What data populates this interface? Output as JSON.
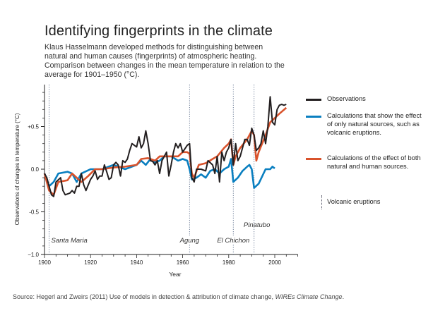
{
  "title": "Identifying fingerprints in the climate",
  "subtitle": "Klaus Hasselmann developed methods for distinguishing between natural and human causes (fingerprints) of atmospheric heating. Comparison between changes in the mean temperature in relation to the average for 1901–1950 (°C).",
  "source": {
    "text": "Source: Hegerl and Zweirs (2011) Use of models in detection & attribution of climate change, ",
    "journal": "WIREs Climate Change",
    "end": "."
  },
  "chart_data": {
    "type": "line",
    "xlabel": "Year",
    "ylabel": "Observations of changes in temperature (°C)",
    "xlim": [
      1900,
      2010
    ],
    "ylim": [
      -1.0,
      1.0
    ],
    "xticks": [
      1900,
      1920,
      1940,
      1960,
      1980,
      2000
    ],
    "xtick_labels": [
      "1900",
      "1920",
      "1940",
      "1960",
      "1980",
      "2000"
    ],
    "yticks": [
      -1.0,
      -0.5,
      0.0,
      0.5
    ],
    "ytick_labels": [
      "−1.0",
      "-0.5",
      "0.0",
      "+0.5"
    ],
    "series": [
      {
        "name": "Observations",
        "color": "#231f20",
        "x": [
          1900,
          1901,
          1903,
          1904,
          1905,
          1907,
          1908,
          1909,
          1911,
          1912,
          1913,
          1914,
          1915,
          1916,
          1917,
          1918,
          1920,
          1921,
          1922,
          1923,
          1924,
          1925,
          1926,
          1927,
          1928,
          1929,
          1930,
          1931,
          1932,
          1933,
          1934,
          1935,
          1936,
          1937,
          1938,
          1939,
          1940,
          1941,
          1942,
          1943,
          1944,
          1945,
          1946,
          1947,
          1948,
          1949,
          1950,
          1951,
          1953,
          1954,
          1955,
          1956,
          1957,
          1958,
          1959,
          1960,
          1962,
          1963,
          1964,
          1965,
          1966,
          1968,
          1970,
          1971,
          1973,
          1974,
          1975,
          1976,
          1977,
          1978,
          1979,
          1980,
          1981,
          1982,
          1983,
          1984,
          1985,
          1987,
          1988,
          1989,
          1990,
          1991,
          1992,
          1993,
          1994,
          1995,
          1996,
          1997,
          1998,
          1999,
          2000,
          2001,
          2002,
          2003,
          2004,
          2005
        ],
        "y": [
          -0.05,
          -0.1,
          -0.3,
          -0.32,
          -0.15,
          -0.1,
          -0.25,
          -0.3,
          -0.28,
          -0.25,
          -0.28,
          -0.2,
          -0.2,
          -0.05,
          -0.18,
          -0.25,
          -0.12,
          -0.08,
          -0.02,
          -0.12,
          -0.08,
          -0.08,
          0.05,
          -0.03,
          -0.12,
          -0.1,
          0.05,
          0.08,
          0.05,
          -0.08,
          0.1,
          0.08,
          0.12,
          0.22,
          0.3,
          0.28,
          0.26,
          0.38,
          0.25,
          0.3,
          0.45,
          0.3,
          0.1,
          0.09,
          0.05,
          0.1,
          -0.05,
          0.1,
          0.2,
          -0.08,
          0.05,
          0.2,
          0.3,
          0.25,
          0.3,
          0.2,
          0.28,
          0.3,
          -0.1,
          -0.15,
          0.0,
          0.0,
          -0.02,
          0.1,
          0.05,
          -0.05,
          0.15,
          -0.15,
          0.2,
          0.1,
          0.2,
          0.25,
          0.35,
          0.05,
          0.3,
          0.1,
          0.15,
          0.35,
          0.35,
          0.28,
          0.48,
          0.4,
          0.22,
          0.25,
          0.3,
          0.45,
          0.3,
          0.5,
          0.85,
          0.55,
          0.52,
          0.7,
          0.75,
          0.76,
          0.75,
          0.76
        ]
      },
      {
        "name": "Calculations that show the effect of only natural sources, such as volcanic eruptions.",
        "color": "#0a7fc0",
        "x": [
          1900,
          1902,
          1904,
          1906,
          1910,
          1912,
          1914,
          1916,
          1920,
          1925,
          1930,
          1935,
          1940,
          1942,
          1944,
          1946,
          1948,
          1950,
          1952,
          1955,
          1958,
          1960,
          1962,
          1963,
          1964,
          1966,
          1968,
          1970,
          1972,
          1974,
          1976,
          1978,
          1980,
          1981,
          1982,
          1984,
          1986,
          1988,
          1989,
          1990,
          1991,
          1993,
          1996,
          1998,
          1999,
          2000
        ],
        "y": [
          -0.05,
          -0.2,
          -0.15,
          -0.05,
          -0.03,
          -0.05,
          -0.15,
          -0.05,
          0.0,
          0.0,
          0.05,
          0.0,
          0.05,
          0.1,
          0.05,
          0.12,
          0.08,
          0.1,
          0.15,
          0.15,
          0.1,
          0.12,
          0.1,
          0.0,
          -0.12,
          -0.1,
          -0.06,
          -0.1,
          -0.02,
          0.0,
          -0.05,
          0.0,
          0.03,
          0.12,
          -0.15,
          -0.1,
          -0.02,
          0.03,
          0.05,
          0.0,
          -0.22,
          -0.17,
          0.0,
          0.0,
          0.03,
          0.01
        ]
      },
      {
        "name": "Calculations of the effect of both natural and human sources.",
        "color": "#d9532c",
        "x": [
          1900,
          1902,
          1904,
          1906,
          1910,
          1912,
          1914,
          1916,
          1919,
          1922,
          1925,
          1930,
          1935,
          1940,
          1942,
          1945,
          1948,
          1950,
          1955,
          1958,
          1960,
          1962,
          1963,
          1964,
          1965,
          1967,
          1970,
          1973,
          1975,
          1978,
          1980,
          1981,
          1982,
          1983,
          1985,
          1988,
          1990,
          1991,
          1992,
          1993,
          1996,
          1998,
          2000,
          2002,
          2005
        ],
        "y": [
          -0.05,
          -0.25,
          -0.3,
          -0.15,
          -0.13,
          -0.05,
          -0.1,
          -0.15,
          -0.08,
          0.0,
          0.0,
          0.02,
          0.03,
          0.05,
          0.12,
          0.13,
          0.1,
          0.15,
          0.15,
          0.15,
          0.2,
          0.2,
          0.18,
          -0.05,
          -0.1,
          0.05,
          0.07,
          0.12,
          0.15,
          0.25,
          0.3,
          0.35,
          0.05,
          0.15,
          0.25,
          0.35,
          0.45,
          0.4,
          0.1,
          0.2,
          0.4,
          0.55,
          0.6,
          0.65,
          0.72
        ]
      }
    ],
    "volcanic_eruptions": {
      "legend": "Volcanic eruptions",
      "events": [
        {
          "name": "Santa Maria",
          "year": 1902
        },
        {
          "name": "Agung",
          "year": 1963
        },
        {
          "name": "El Chichon",
          "year": 1982
        },
        {
          "name": "Pinatubo",
          "year": 1991
        }
      ]
    },
    "legend_position": "right"
  }
}
